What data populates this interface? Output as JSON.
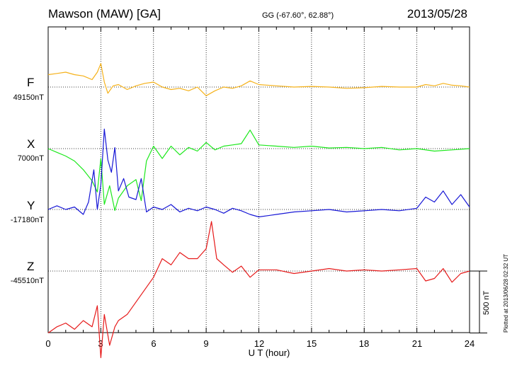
{
  "chart_data": {
    "type": "line",
    "title": "",
    "xlabel": "U T (hour)",
    "ylabel": "",
    "xlim": [
      0,
      24
    ],
    "xticks": [
      "0",
      "3",
      "6",
      "9",
      "12",
      "15",
      "18",
      "21",
      "24"
    ],
    "grid": "vertical dotted lines every 3 hours",
    "scale_bar": {
      "value": 500,
      "label": "500 nT"
    },
    "series": [
      {
        "name": "F",
        "baseline_label": "49150nT",
        "color": "#f5b21b",
        "x": [
          0,
          0.5,
          1,
          1.5,
          2,
          2.5,
          2.8,
          3,
          3.2,
          3.4,
          3.7,
          4,
          4.5,
          5,
          5.5,
          6,
          6.5,
          7,
          7.5,
          8,
          8.5,
          9,
          9.5,
          10,
          10.5,
          11,
          11.5,
          12,
          13,
          14,
          15,
          16,
          17,
          18,
          19,
          20,
          21,
          21.5,
          22,
          22.5,
          23,
          23.5,
          24
        ],
        "values": [
          100,
          110,
          120,
          100,
          90,
          60,
          120,
          190,
          40,
          -50,
          10,
          20,
          -20,
          10,
          30,
          40,
          0,
          -20,
          -10,
          -30,
          0,
          -70,
          -30,
          0,
          -10,
          10,
          50,
          20,
          10,
          0,
          5,
          0,
          -10,
          -5,
          5,
          0,
          0,
          20,
          10,
          30,
          15,
          10,
          0
        ]
      },
      {
        "name": "X",
        "baseline_label": "7000nT",
        "color": "#1ce81c",
        "x": [
          0,
          0.5,
          1,
          1.5,
          2,
          2.5,
          2.8,
          3,
          3.2,
          3.5,
          3.8,
          4,
          4.5,
          5,
          5.3,
          5.6,
          6,
          6.5,
          7,
          7.5,
          8,
          8.5,
          9,
          9.5,
          10,
          10.5,
          11,
          11.5,
          12,
          13,
          14,
          15,
          16,
          17,
          18,
          19,
          20,
          21,
          22,
          23,
          24
        ],
        "values": [
          0,
          -30,
          -60,
          -100,
          -170,
          -260,
          -350,
          -80,
          -450,
          -300,
          -500,
          -400,
          -300,
          -250,
          -420,
          -100,
          20,
          -80,
          20,
          -50,
          10,
          -20,
          50,
          -10,
          20,
          30,
          40,
          150,
          30,
          20,
          10,
          20,
          5,
          10,
          0,
          10,
          -10,
          0,
          -20,
          -10,
          0
        ]
      },
      {
        "name": "Y",
        "baseline_label": "-17180nT",
        "color": "#1717d6",
        "x": [
          0,
          0.5,
          1,
          1.5,
          2,
          2.3,
          2.6,
          2.8,
          3,
          3.2,
          3.4,
          3.6,
          3.8,
          4,
          4.3,
          4.6,
          5,
          5.3,
          5.6,
          6,
          6.5,
          7,
          7.5,
          8,
          8.5,
          9,
          9.5,
          10,
          10.5,
          11,
          11.5,
          12,
          13,
          14,
          15,
          16,
          17,
          18,
          19,
          20,
          21,
          21.5,
          22,
          22.5,
          23,
          23.5,
          24
        ],
        "values": [
          0,
          30,
          0,
          20,
          -40,
          60,
          320,
          0,
          200,
          650,
          400,
          300,
          500,
          150,
          250,
          100,
          80,
          250,
          -20,
          20,
          0,
          40,
          -20,
          10,
          -10,
          20,
          0,
          -30,
          10,
          -10,
          -40,
          -60,
          -40,
          -20,
          -10,
          0,
          -20,
          -10,
          0,
          -10,
          10,
          100,
          60,
          150,
          40,
          120,
          20
        ]
      },
      {
        "name": "Z",
        "baseline_label": "-45510nT",
        "color": "#e61a1a",
        "x": [
          0,
          0.5,
          1,
          1.5,
          2,
          2.5,
          2.8,
          3,
          3.2,
          3.5,
          3.8,
          4,
          4.5,
          5,
          5.5,
          6,
          6.5,
          7,
          7.5,
          8,
          8.5,
          9,
          9.3,
          9.6,
          10,
          10.5,
          11,
          11.5,
          12,
          13,
          14,
          15,
          16,
          17,
          18,
          19,
          20,
          21,
          21.5,
          22,
          22.5,
          23,
          23.5,
          24
        ],
        "values": [
          -500,
          -450,
          -420,
          -470,
          -400,
          -450,
          -280,
          -700,
          -350,
          -600,
          -450,
          -400,
          -350,
          -250,
          -150,
          -50,
          100,
          50,
          150,
          100,
          100,
          180,
          400,
          100,
          50,
          -10,
          40,
          -50,
          10,
          10,
          -20,
          0,
          20,
          0,
          10,
          0,
          10,
          20,
          -80,
          -60,
          20,
          -90,
          -20,
          0
        ]
      }
    ]
  },
  "header": {
    "station": "Mawson (MAW)  [GA]",
    "coords": "GG (-67.60°,  62.88°)",
    "date": "2013/05/28"
  },
  "footer": {
    "plotted": "Plotted at 2013/06/28 02:32 UT"
  }
}
